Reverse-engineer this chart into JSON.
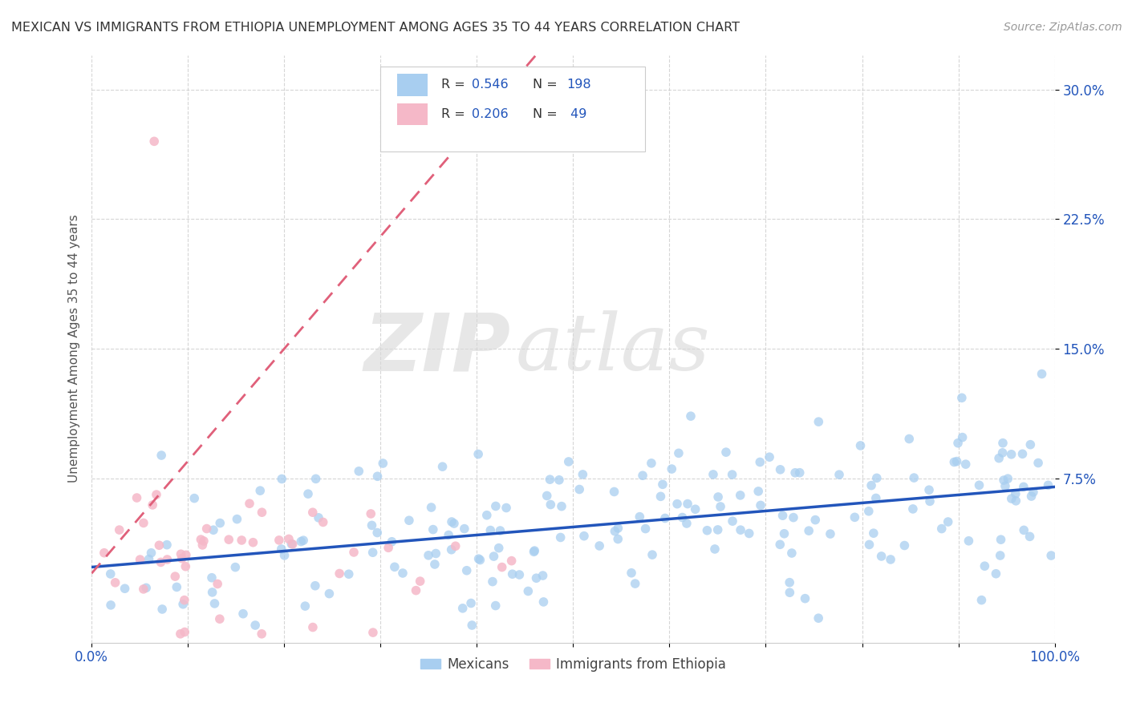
{
  "title": "MEXICAN VS IMMIGRANTS FROM ETHIOPIA UNEMPLOYMENT AMONG AGES 35 TO 44 YEARS CORRELATION CHART",
  "source": "Source: ZipAtlas.com",
  "ylabel": "Unemployment Among Ages 35 to 44 years",
  "xlim": [
    0,
    1.0
  ],
  "ylim": [
    -0.02,
    0.32
  ],
  "xticks": [
    0.0,
    0.1,
    0.2,
    0.3,
    0.4,
    0.5,
    0.6,
    0.7,
    0.8,
    0.9,
    1.0
  ],
  "xtick_labels": [
    "0.0%",
    "",
    "",
    "",
    "",
    "",
    "",
    "",
    "",
    "",
    "100.0%"
  ],
  "yticks": [
    0.075,
    0.15,
    0.225,
    0.3
  ],
  "ytick_labels": [
    "7.5%",
    "15.0%",
    "22.5%",
    "30.0%"
  ],
  "blue_color": "#a8cef0",
  "pink_color": "#f5b8c8",
  "blue_line_color": "#2255bb",
  "pink_line_color": "#e0607a",
  "blue_R": 0.546,
  "blue_N": 198,
  "pink_R": 0.206,
  "pink_N": 49,
  "watermark_zip": "ZIP",
  "watermark_atlas": "atlas",
  "legend_label_blue": "Mexicans",
  "legend_label_pink": "Immigrants from Ethiopia",
  "background_color": "#ffffff",
  "grid_color": "#cccccc",
  "title_color": "#333333",
  "seed": 42
}
